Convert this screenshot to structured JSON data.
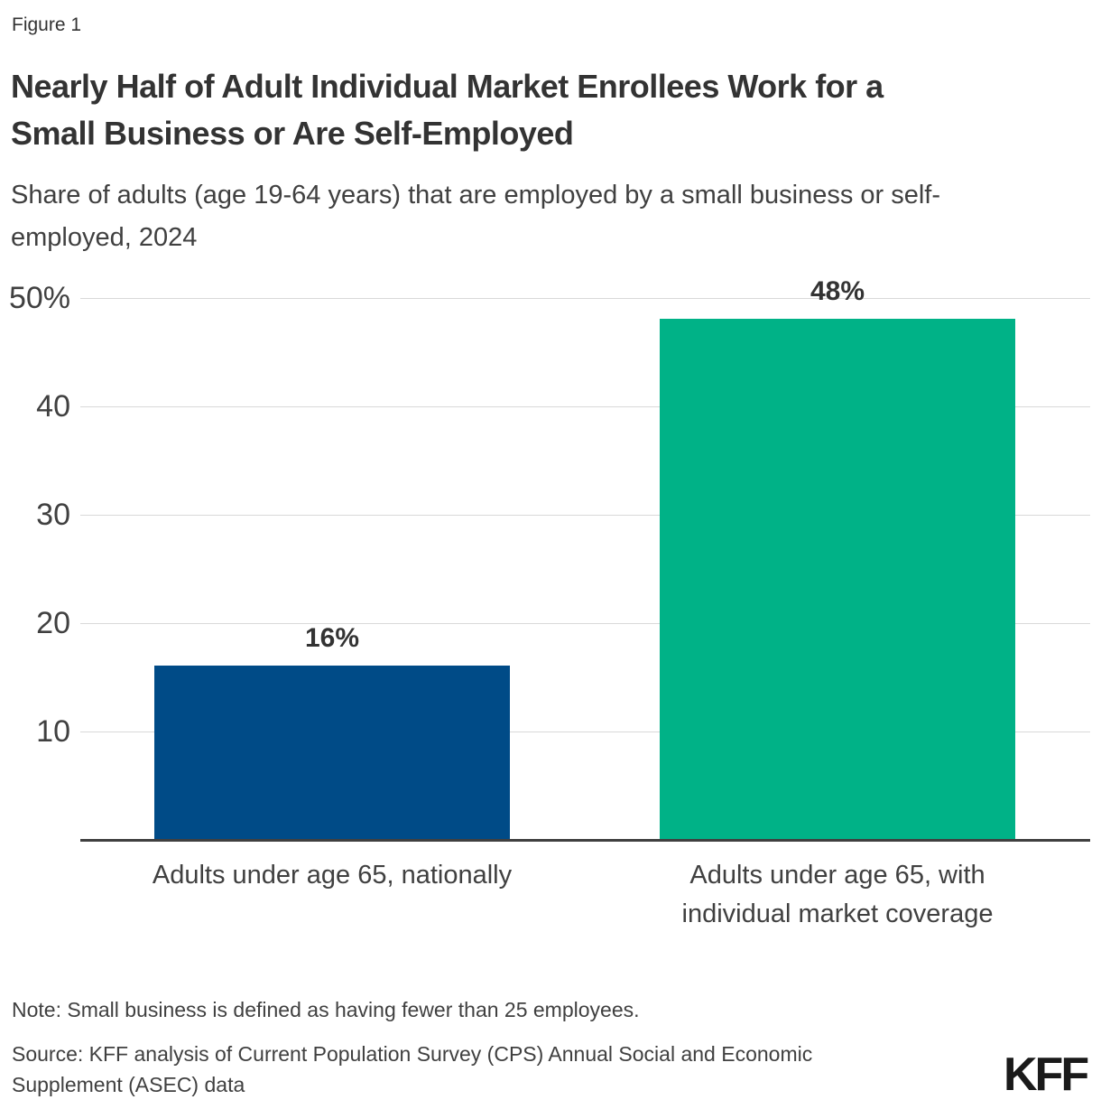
{
  "figure_label": "Figure 1",
  "title": {
    "line1": "Nearly Half of Adult Individual Market Enrollees Work for a",
    "line2": "Small Business or Are Self-Employed"
  },
  "subtitle": {
    "line1": "Share of adults (age 19-64 years) that are employed by a small business or self-",
    "line2": "employed, 2024"
  },
  "chart_data": {
    "type": "bar",
    "title": "Nearly Half of Adult Individual Market Enrollees Work for a Small Business or Are Self-Employed",
    "subtitle": "Share of adults (age 19-64 years) that are employed by a small business or self-employed, 2024",
    "categories": [
      "Adults under age 65, nationally",
      "Adults under age 65, with individual market coverage"
    ],
    "category_lines": [
      [
        "Adults under age 65, nationally"
      ],
      [
        "Adults under age 65, with",
        "individual market coverage"
      ]
    ],
    "values": [
      16,
      48
    ],
    "value_labels": [
      "16%",
      "48%"
    ],
    "bar_colors": [
      "#004b87",
      "#00b287"
    ],
    "unit": "%",
    "xlabel": "",
    "ylabel": "",
    "ylim": [
      0,
      50
    ],
    "yticks": [
      10,
      20,
      30,
      40,
      50
    ],
    "ytick_labels": [
      "10",
      "20",
      "30",
      "40",
      "50%"
    ],
    "grid": true,
    "legend_position": "none"
  },
  "note": "Note: Small business is defined as having fewer than 25 employees.",
  "source": {
    "line1": "Source: KFF analysis of Current Population Survey (CPS) Annual Social and Economic",
    "line2": "Supplement (ASEC) data"
  },
  "logo": "KFF",
  "colors": {
    "bar_blue": "#004b87",
    "bar_teal": "#00b287",
    "gridline": "#d9d9d9",
    "axis": "#404040",
    "text_dark": "#333333",
    "text_gray": "#404040"
  }
}
